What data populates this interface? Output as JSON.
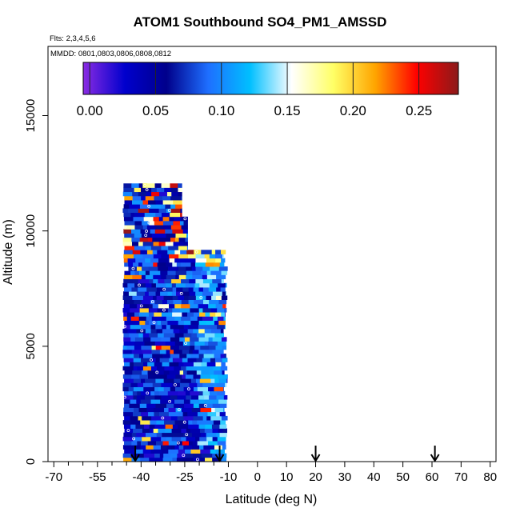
{
  "chart_data": {
    "type": "heatmap",
    "title": "ATOM1 Southbound SO4_PM1_AMSSD",
    "flights_note": "Flts: 2,3,4,5,6",
    "mmdd_note": "MMDD: 0801,0803,0806,0808,0812",
    "xlabel": "Latitude (deg N)",
    "ylabel": "Altitude (m)",
    "xlim": [
      -72,
      82
    ],
    "ylim": [
      0,
      18000
    ],
    "x_ticks": [
      -70,
      -55,
      -40,
      -25,
      -10,
      0,
      10,
      20,
      30,
      40,
      50,
      60,
      70,
      80
    ],
    "y_ticks": [
      0,
      5000,
      10000,
      15000
    ],
    "colorbar": {
      "range": [
        -0.005,
        0.28
      ],
      "ticks": [
        0.0,
        0.05,
        0.1,
        0.15,
        0.2,
        0.25
      ],
      "tick_labels": [
        "0.00",
        "0.05",
        "0.10",
        "0.15",
        "0.20",
        "0.25"
      ],
      "colors": [
        "#8a2be2",
        "#0000cd",
        "#00008b",
        "#1e6fff",
        "#00bfff",
        "#ffffff",
        "#ffff66",
        "#ffa500",
        "#ff0000",
        "#8b1a1a"
      ]
    },
    "flight_arrows_latitude": [
      -42,
      -13,
      20,
      61
    ],
    "data_region": {
      "lat_min": -46,
      "lat_max": -11,
      "alt_min": 0,
      "alt_max": 12000
    }
  }
}
